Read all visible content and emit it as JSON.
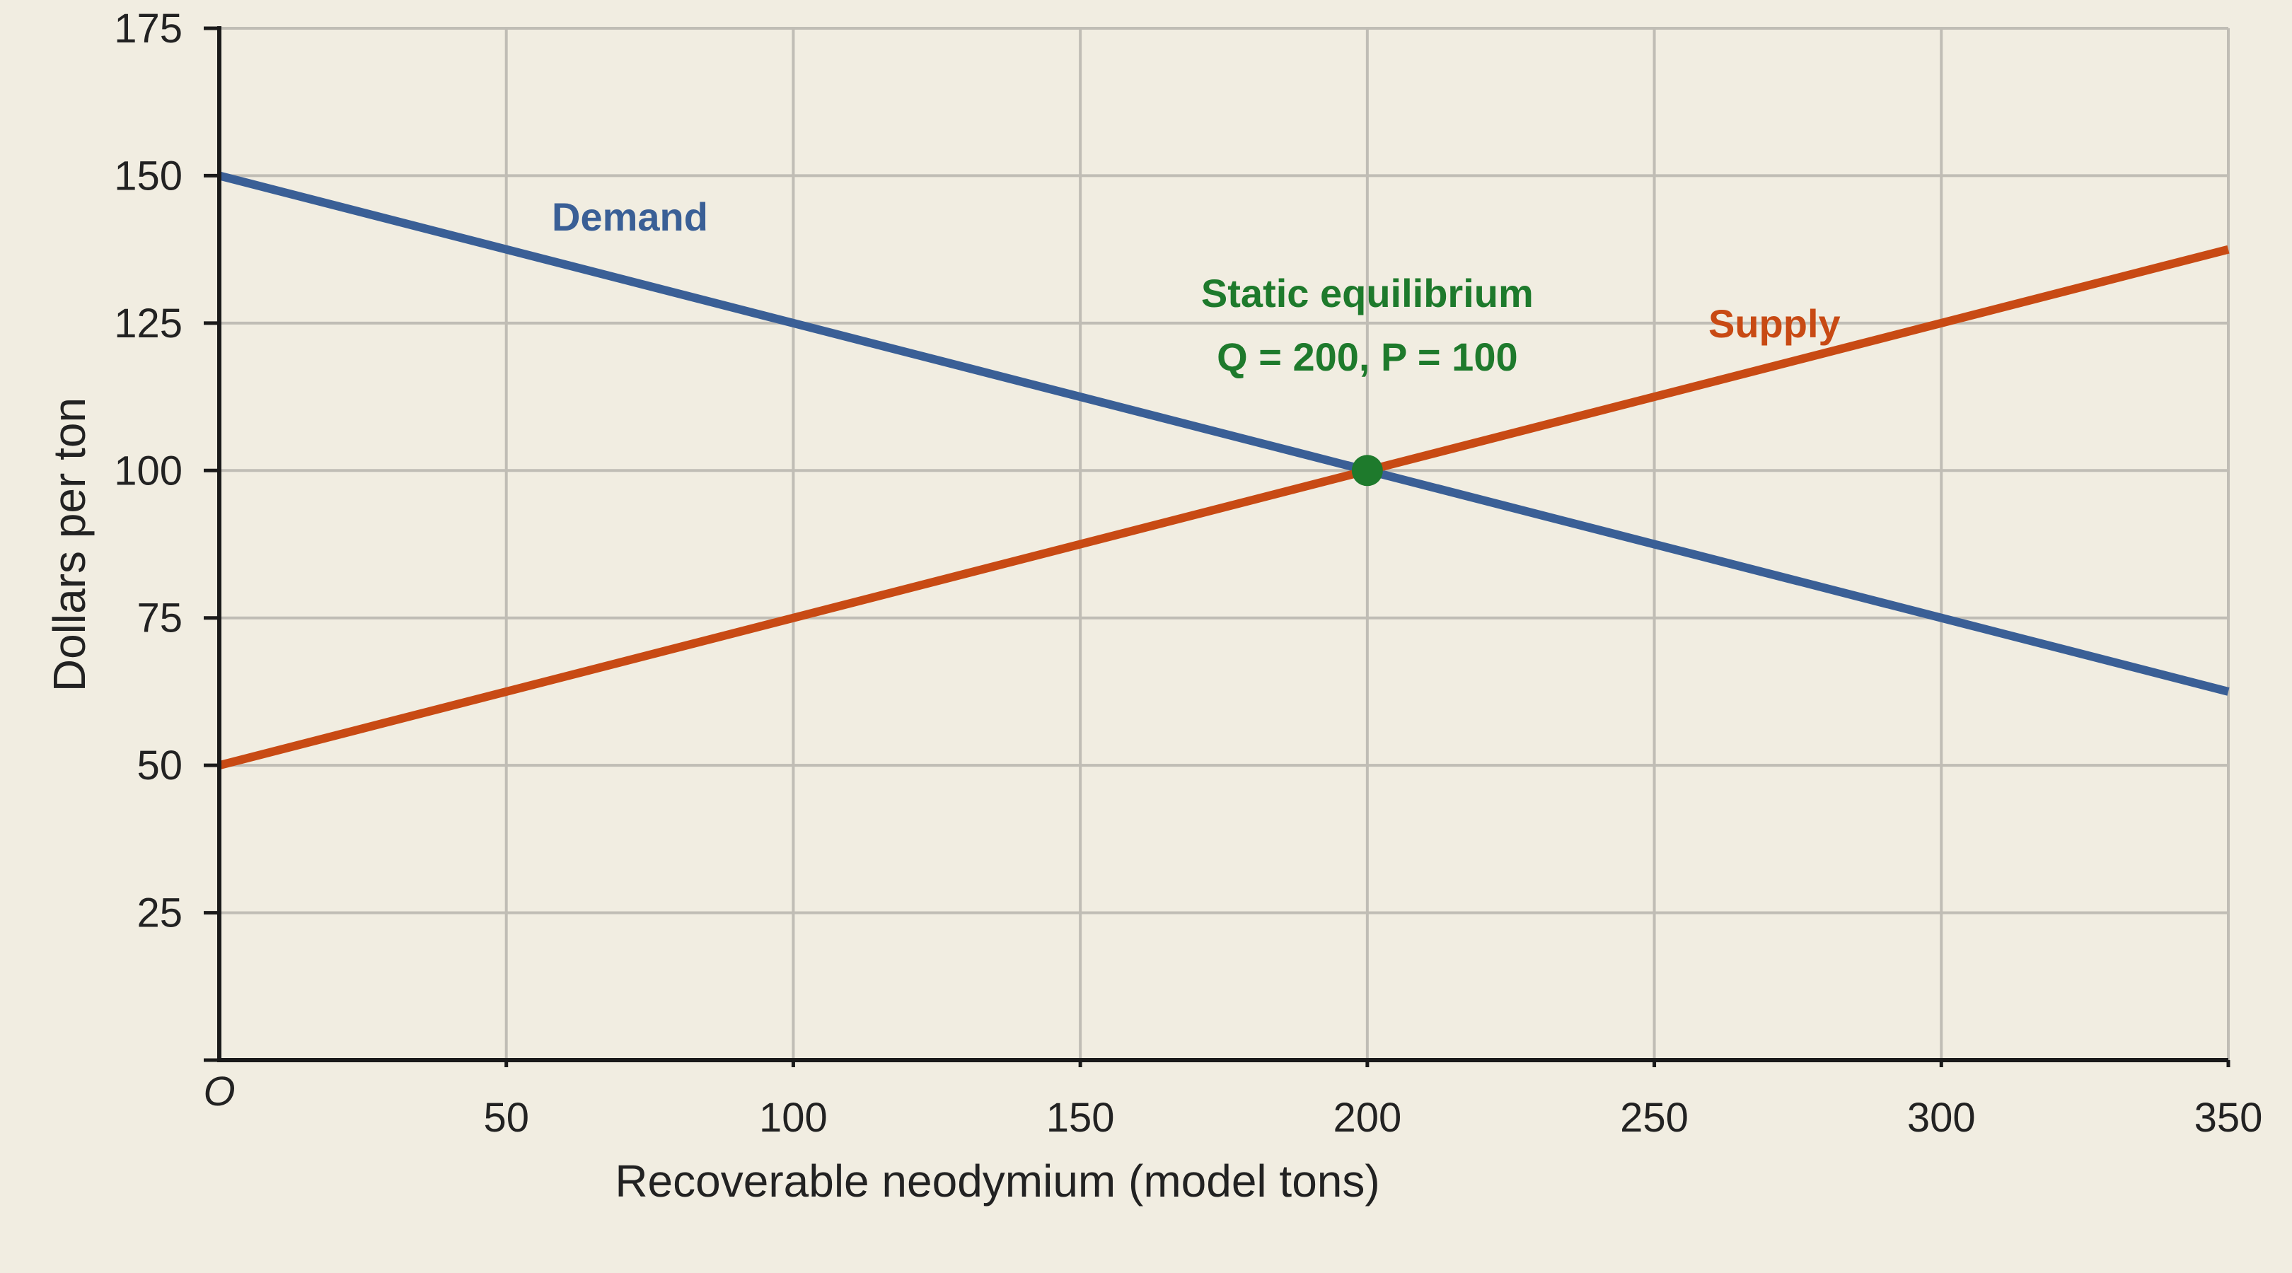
{
  "chart_data": {
    "type": "line",
    "xlabel": "Recoverable neodymium (model tons)",
    "ylabel": "Dollars per ton",
    "xlim": [
      0,
      350
    ],
    "ylim": [
      0,
      175
    ],
    "origin_label": "O",
    "x_ticks": [
      50,
      100,
      150,
      200,
      250,
      300,
      350
    ],
    "y_ticks": [
      25,
      50,
      75,
      100,
      125,
      150,
      175
    ],
    "grid": true,
    "series": [
      {
        "name": "Demand",
        "color": "#3a5f96",
        "points": [
          [
            0,
            150
          ],
          [
            350,
            62.5
          ]
        ]
      },
      {
        "name": "Supply",
        "color": "#c84a14",
        "points": [
          [
            0,
            50
          ],
          [
            350,
            137.5
          ]
        ]
      }
    ],
    "annotations": [
      {
        "type": "point",
        "x": 200,
        "y": 100,
        "color": "#1e7a2c",
        "lines": [
          "Static equilibrium",
          "Q = 200, P = 100"
        ]
      }
    ]
  }
}
